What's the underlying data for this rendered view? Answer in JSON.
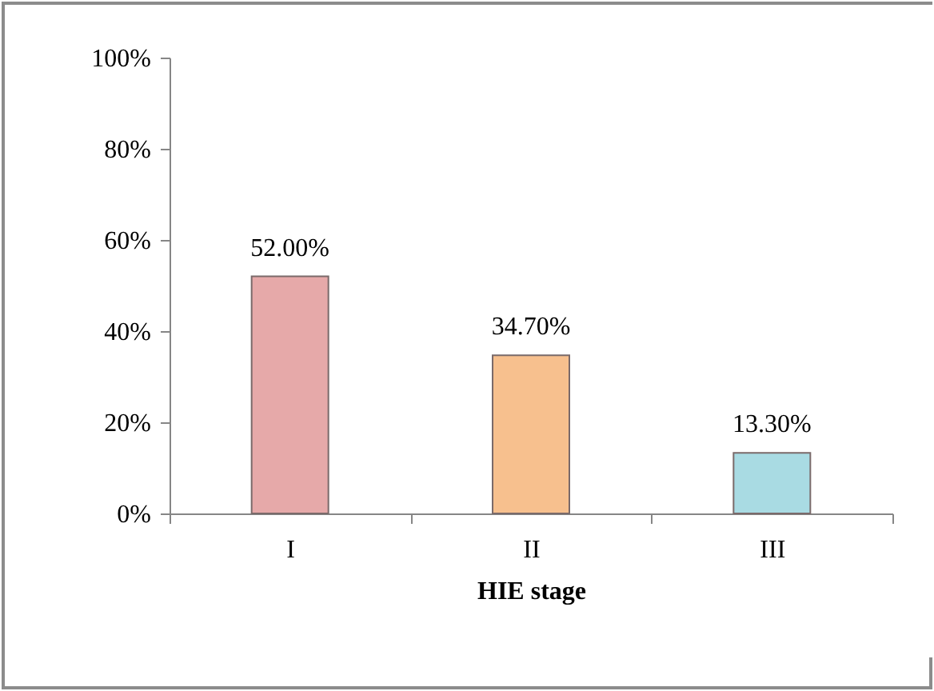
{
  "chart_data": {
    "type": "bar",
    "xlabel": "HIE stage",
    "categories": [
      "I",
      "II",
      "III"
    ],
    "values": [
      52.0,
      34.7,
      13.3
    ],
    "colors": [
      "#e6a9a9",
      "#f7c08e",
      "#a9dbe3"
    ],
    "value_labels": [
      "52.00%",
      "34.70%",
      "13.30%"
    ],
    "ylim": [
      0,
      100
    ],
    "yticks": [
      {
        "value": 0,
        "label": "0%"
      },
      {
        "value": 20,
        "label": "20%"
      },
      {
        "value": 40,
        "label": "40%"
      },
      {
        "value": 60,
        "label": "60%"
      },
      {
        "value": 80,
        "label": "80%"
      },
      {
        "value": 100,
        "label": "100%"
      }
    ],
    "grid": false
  }
}
